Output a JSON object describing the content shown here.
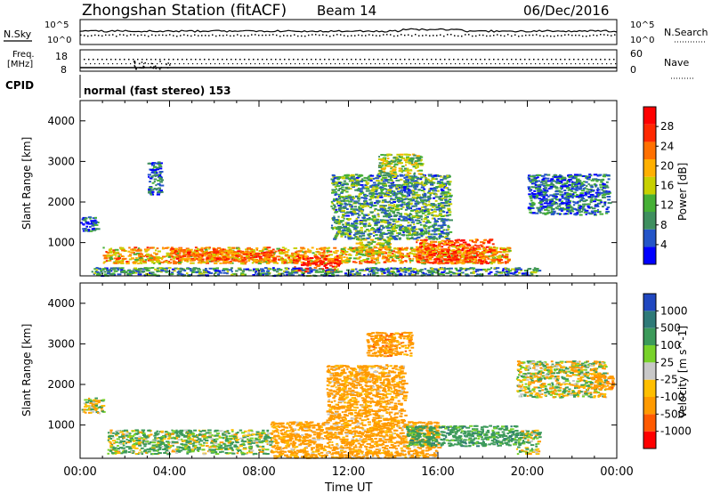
{
  "header": {
    "station": "Zhongshan Station (fitACF)",
    "beam": "Beam 14",
    "date": "06/Dec/2016"
  },
  "top_panels": {
    "nsky_label": "N.Sky",
    "nsearch_label": "N.Search",
    "noise_left_ticks": [
      "10^5",
      "10^0"
    ],
    "noise_right_ticks": [
      "10^5",
      "10^0"
    ],
    "freq_label_line1": "Freq.",
    "freq_label_line2": "[MHz]",
    "freq_ticks": [
      "18",
      "8"
    ],
    "nave_label": "Nave",
    "nave_ticks": [
      "60",
      "0"
    ],
    "cpid_label": "CPID",
    "cpid_text": "normal (fast stereo) 153"
  },
  "axes": {
    "ylabel": "Slant Range [km]",
    "xlabel": "Time UT",
    "x_ticks": [
      "00:00",
      "04:00",
      "08:00",
      "12:00",
      "16:00",
      "20:00",
      "00:00"
    ],
    "y_ticks": [
      "1000",
      "2000",
      "3000",
      "4000"
    ]
  },
  "colors": {
    "power": [
      "#0000ff",
      "#2455c8",
      "#3f8f5f",
      "#46b036",
      "#c8d000",
      "#ffb000",
      "#ff7000",
      "#ff2800",
      "#ff0000"
    ],
    "velocity": [
      "#ff0000",
      "#ff5a00",
      "#ff9a00",
      "#ffbf00",
      "#c8c8c8",
      "#78d22a",
      "#3c9a5a",
      "#2f7a78",
      "#2047c0"
    ]
  },
  "chart_data": [
    {
      "type": "heatmap",
      "title": "Zhongshan Station (fitACF)",
      "quantity": "Power",
      "colorbar_label": "Power [dB]",
      "colorbar_ticks": [
        "28",
        "24",
        "20",
        "16",
        "12",
        "8",
        "4"
      ],
      "clim": [
        0,
        32
      ],
      "xlabel": "Time UT",
      "ylabel": "Slant Range [km]",
      "xlim_hours": [
        0,
        24
      ],
      "ylim_km": [
        180,
        4500
      ],
      "regions": [
        {
          "t": [
            1.0,
            19.2
          ],
          "r": [
            500,
            900
          ],
          "value": 20
        },
        {
          "t": [
            4.0,
            8.6
          ],
          "r": [
            560,
            820
          ],
          "value": 24
        },
        {
          "t": [
            9.5,
            11.5
          ],
          "r": [
            300,
            700
          ],
          "value": 26
        },
        {
          "t": [
            12.3,
            13.8
          ],
          "r": [
            700,
            1100
          ],
          "value": 16
        },
        {
          "t": [
            15.0,
            18.5
          ],
          "r": [
            500,
            1100
          ],
          "value": 24
        },
        {
          "t": [
            11.2,
            16.5
          ],
          "r": [
            1100,
            2700
          ],
          "value": 10
        },
        {
          "t": [
            13.3,
            15.2
          ],
          "r": [
            2700,
            3200
          ],
          "value": 14
        },
        {
          "t": [
            20.0,
            23.6
          ],
          "r": [
            1700,
            2700
          ],
          "value": 7
        },
        {
          "t": [
            0.0,
            0.8
          ],
          "r": [
            1300,
            1650
          ],
          "value": 6
        },
        {
          "t": [
            3.0,
            3.6
          ],
          "r": [
            2200,
            3000
          ],
          "value": 6
        },
        {
          "t": [
            0.5,
            20.5
          ],
          "r": [
            200,
            400
          ],
          "value": 9
        }
      ]
    },
    {
      "type": "heatmap",
      "quantity": "Velocity",
      "colorbar_label": "Velocity [m s^-1]",
      "colorbar_ticks": [
        "1000",
        "500",
        "100",
        "25",
        "-25",
        "-100",
        "-500",
        "-1000"
      ],
      "xlabel": "Time UT",
      "ylabel": "Slant Range [km]",
      "xlim_hours": [
        0,
        24
      ],
      "ylim_km": [
        180,
        4500
      ],
      "regions": [
        {
          "t": [
            1.2,
            8.5
          ],
          "r": [
            300,
            900
          ],
          "value": 100
        },
        {
          "t": [
            8.5,
            16.0
          ],
          "r": [
            200,
            1100
          ],
          "value": -250
        },
        {
          "t": [
            11.0,
            14.5
          ],
          "r": [
            1100,
            2500
          ],
          "value": -250
        },
        {
          "t": [
            12.8,
            14.8
          ],
          "r": [
            2700,
            3300
          ],
          "value": -300
        },
        {
          "t": [
            14.5,
            19.5
          ],
          "r": [
            500,
            1000
          ],
          "value": 300
        },
        {
          "t": [
            19.5,
            20.5
          ],
          "r": [
            300,
            900
          ],
          "value": 60
        },
        {
          "t": [
            19.5,
            23.5
          ],
          "r": [
            1700,
            2600
          ],
          "value": 0
        },
        {
          "t": [
            0.0,
            1.0
          ],
          "r": [
            1300,
            1700
          ],
          "value": 0
        },
        {
          "t": [
            22.8,
            23.8
          ],
          "r": [
            1900,
            2300
          ],
          "value": -300
        }
      ]
    }
  ]
}
